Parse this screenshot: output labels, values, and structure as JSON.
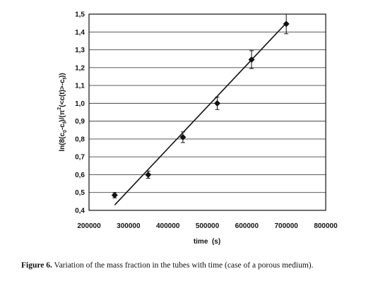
{
  "chart_data": {
    "type": "scatter",
    "xlabel": "time  (s)",
    "ylabel": "ln(8(c0-cf)/(π²(<c(t)>-cf)))",
    "ylabel_parts": {
      "a": "ln(8(c",
      "s1": "0",
      "b": "-c",
      "s2": "f",
      "c": ")/(π",
      "sup": "2",
      "d": "(<c(t)>-c",
      "s3": "f",
      "e": "))"
    },
    "xlim": [
      200000,
      800000
    ],
    "ylim": [
      0.4,
      1.5
    ],
    "x_ticks": [
      200000,
      300000,
      400000,
      500000,
      600000,
      700000,
      800000
    ],
    "x_tick_labels": [
      "200000",
      "300000",
      "400000",
      "500000",
      "600000",
      "700000",
      "800000"
    ],
    "y_ticks": [
      0.4,
      0.5,
      0.6,
      0.7,
      0.8,
      0.9,
      1.0,
      1.1,
      1.2,
      1.3,
      1.4,
      1.5
    ],
    "y_tick_labels": [
      "0,4",
      "0,5",
      "0,6",
      "0,7",
      "0,8",
      "0,9",
      "1,0",
      "1,1",
      "1,2",
      "1,3",
      "1,4",
      "1,5"
    ],
    "grid": "horizontal",
    "points": [
      {
        "x": 265000,
        "y": 0.485,
        "err": 0.015
      },
      {
        "x": 350000,
        "y": 0.6,
        "err": 0.02
      },
      {
        "x": 438000,
        "y": 0.81,
        "err": 0.03
      },
      {
        "x": 525000,
        "y": 1.0,
        "err": 0.035
      },
      {
        "x": 612000,
        "y": 1.245,
        "err": 0.05
      },
      {
        "x": 700000,
        "y": 1.445,
        "err": 0.055
      }
    ],
    "fit_line": {
      "x": [
        265000,
        700000
      ],
      "y": [
        0.43,
        1.45
      ]
    }
  },
  "caption": {
    "label": "Figure 6.",
    "text": "Variation of the mass fraction in the tubes with time (case of a porous medium)."
  },
  "colors": {
    "ink": "#111111",
    "grid": "#444444",
    "background": "#ffffff"
  }
}
